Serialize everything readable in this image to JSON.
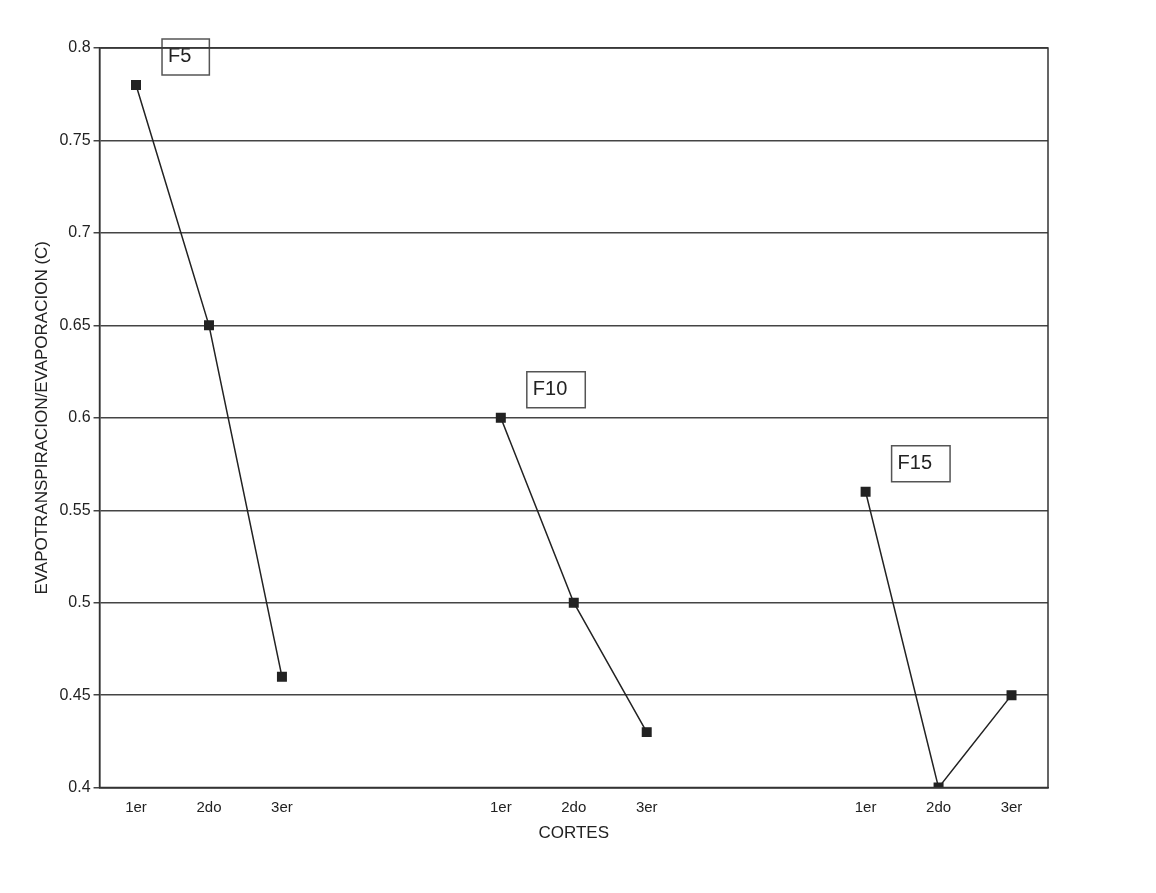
{
  "chart_data": {
    "type": "line",
    "xlabel": "CORTES",
    "ylabel": "EVAPOTRANSPIRACION/EVAPORACION (C)",
    "categories": [
      "1er",
      "2do",
      "3er",
      null,
      null,
      "1er",
      "2do",
      "3er",
      null,
      null,
      "1er",
      "2do",
      "3er"
    ],
    "series": [
      {
        "name": "F5",
        "color": "#222222",
        "values": [
          0.78,
          0.65,
          0.46,
          null,
          null,
          null,
          null,
          null,
          null,
          null,
          null,
          null,
          null
        ]
      },
      {
        "name": "F10",
        "color": "#222222",
        "values": [
          null,
          null,
          null,
          null,
          null,
          0.6,
          0.5,
          0.43,
          null,
          null,
          null,
          null,
          null
        ]
      },
      {
        "name": "F15",
        "color": "#222222",
        "values": [
          null,
          null,
          null,
          null,
          null,
          null,
          null,
          null,
          null,
          null,
          0.56,
          0.4,
          0.45
        ]
      }
    ],
    "ylim": [
      0.4,
      0.8
    ],
    "yticks": [
      0.4,
      0.45,
      0.5,
      0.55,
      0.6,
      0.65,
      0.7,
      0.75,
      0.8
    ],
    "grid": "y",
    "legend": false,
    "marker": "square",
    "line_style": "solid"
  }
}
